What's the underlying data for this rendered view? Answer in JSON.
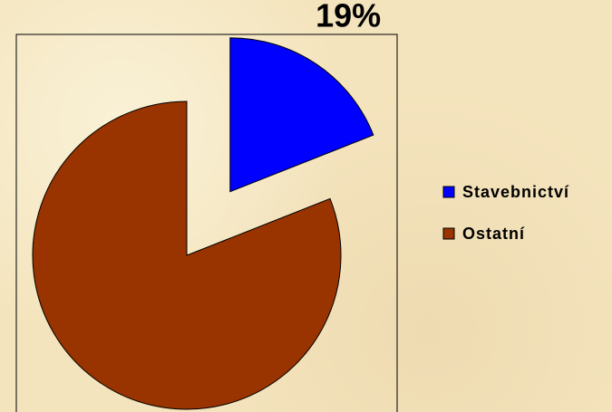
{
  "chart_data": {
    "type": "pie",
    "categories": [
      "Stavebnictví",
      "Ostatní"
    ],
    "values": [
      19,
      81
    ],
    "value_labels": [
      "19%",
      null
    ],
    "colors": [
      "#0000ff",
      "#993300"
    ],
    "explode": [
      true,
      false
    ],
    "legend": "right"
  }
}
